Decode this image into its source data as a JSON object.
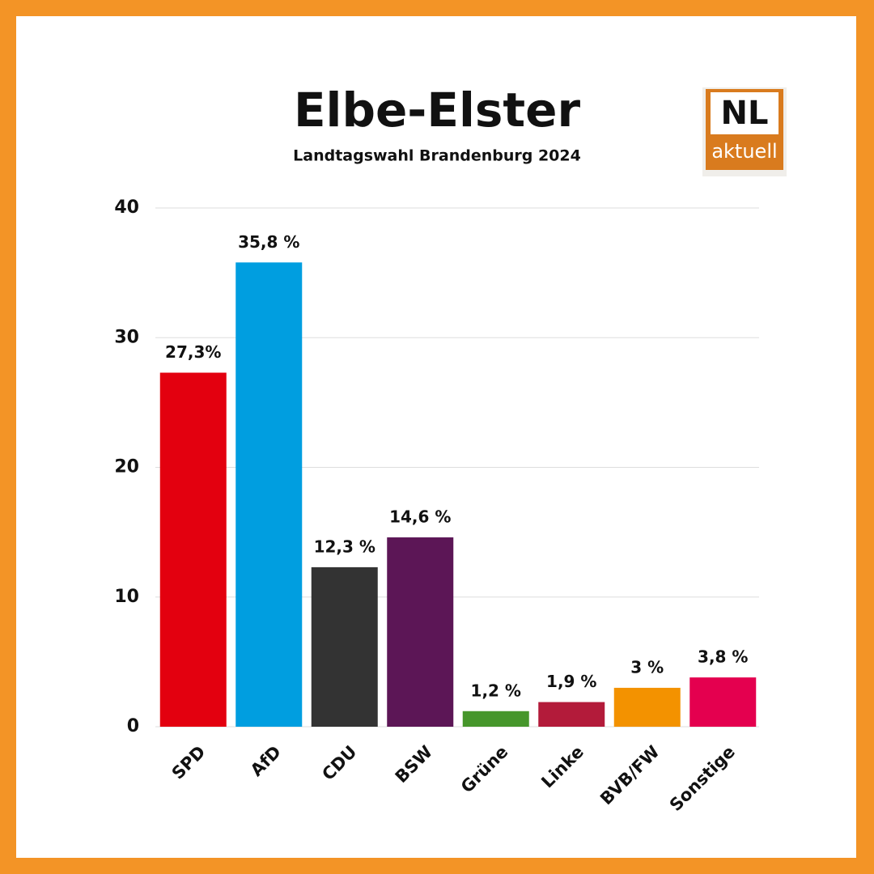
{
  "chart_data": {
    "type": "bar",
    "title": "Elbe-Elster",
    "subtitle": "Landtagswahl Brandenburg 2024",
    "categories": [
      "SPD",
      "AfD",
      "CDU",
      "BSW",
      "Grüne",
      "Linke",
      "BVB/FW",
      "Sonstige"
    ],
    "values": [
      27.3,
      35.8,
      12.3,
      14.6,
      1.2,
      1.9,
      3,
      3.8
    ],
    "value_labels": [
      "27,3%",
      "35,8 %",
      "12,3 %",
      "14,6 %",
      "1,2 %",
      "1,9 %",
      "3 %",
      "3,8 %"
    ],
    "colors": [
      "#e3000f",
      "#009ee0",
      "#333333",
      "#5c1656",
      "#46962b",
      "#b31b3a",
      "#f39200",
      "#e4004f"
    ],
    "ylim": [
      0,
      40
    ],
    "yticks": [
      0,
      10,
      20,
      30,
      40
    ],
    "grid": true
  },
  "logo": {
    "top": "NL",
    "bottom": "aktuell"
  }
}
